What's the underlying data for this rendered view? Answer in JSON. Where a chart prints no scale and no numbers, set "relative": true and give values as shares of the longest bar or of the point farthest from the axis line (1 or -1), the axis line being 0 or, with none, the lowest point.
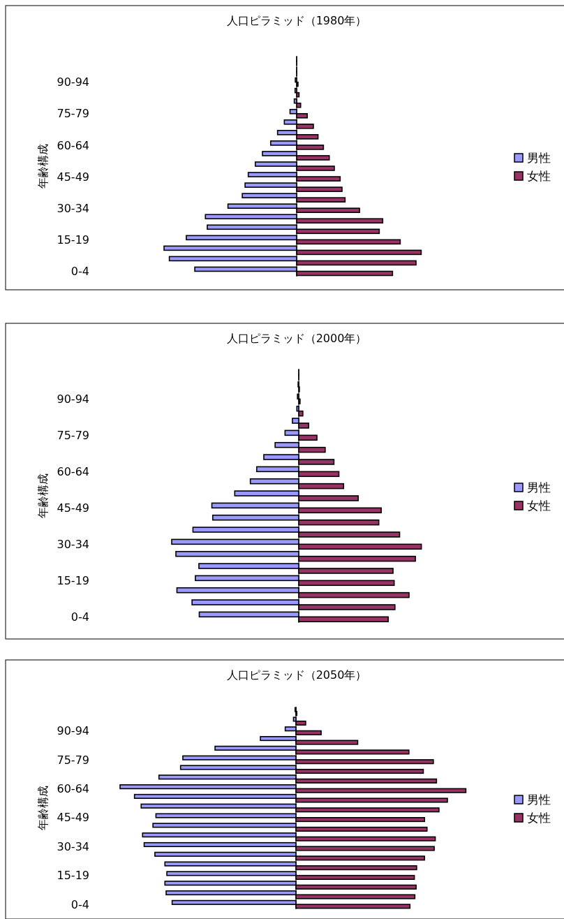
{
  "chart_data": [
    {
      "type": "bar",
      "orientation": "horizontal",
      "relative": true,
      "title": "人口ピラミッド（1980年）",
      "ylabel": "年齢構成",
      "legend": "right",
      "categories": [
        null,
        null,
        "90-94",
        null,
        null,
        "75-79",
        null,
        null,
        "60-64",
        null,
        null,
        "45-49",
        null,
        null,
        "30-34",
        null,
        null,
        "15-19",
        null,
        null,
        "0-4"
      ],
      "series": [
        {
          "name": "男性",
          "color": "#9999ff",
          "values": [
            0,
            0,
            -0.01,
            -0.012,
            -0.018,
            -0.05,
            -0.093,
            -0.144,
            -0.196,
            -0.258,
            -0.312,
            -0.365,
            -0.389,
            -0.41,
            -0.518,
            -0.688,
            -0.674,
            -0.832,
            -1,
            -0.96,
            -0.768
          ]
        },
        {
          "name": "女性",
          "color": "#993366",
          "values": [
            0,
            0,
            0.01,
            0.018,
            0.03,
            0.08,
            0.126,
            0.161,
            0.202,
            0.246,
            0.284,
            0.328,
            0.342,
            0.365,
            0.474,
            0.649,
            0.623,
            0.781,
            0.939,
            0.9,
            0.723
          ]
        }
      ]
    },
    {
      "type": "bar",
      "orientation": "horizontal",
      "relative": true,
      "title": "人口ピラミッド（2000年）",
      "ylabel": "年齢構成",
      "legend": "right",
      "categories": [
        null,
        null,
        "90-94",
        null,
        null,
        "75-79",
        null,
        null,
        "60-64",
        null,
        null,
        "45-49",
        null,
        null,
        "30-34",
        null,
        null,
        "15-19",
        null,
        null,
        "0-4"
      ],
      "series": [
        {
          "name": "男性",
          "color": "#9999ff",
          "values": [
            0,
            -0.005,
            -0.01,
            -0.015,
            -0.05,
            -0.108,
            -0.186,
            -0.275,
            -0.331,
            -0.381,
            -0.504,
            -0.684,
            -0.677,
            -0.833,
            -1,
            -0.967,
            -0.786,
            -0.814,
            -0.959,
            -0.84,
            -0.783
          ]
        },
        {
          "name": "女性",
          "color": "#993366",
          "values": [
            0,
            0.005,
            0.01,
            0.032,
            0.078,
            0.143,
            0.208,
            0.277,
            0.316,
            0.353,
            0.468,
            0.649,
            0.63,
            0.794,
            0.965,
            0.918,
            0.742,
            0.751,
            0.868,
            0.757,
            0.704
          ]
        }
      ]
    },
    {
      "type": "bar",
      "orientation": "horizontal",
      "relative": true,
      "title": "人口ピラミッド（2050年）",
      "ylabel": "年齢構成",
      "legend": "right",
      "categories": [
        null,
        null,
        "90-94",
        null,
        null,
        "75-79",
        null,
        null,
        "60-64",
        null,
        null,
        "45-49",
        null,
        null,
        "30-34",
        null,
        null,
        "15-19",
        null,
        null,
        "0-4"
      ],
      "series": [
        {
          "name": "男性",
          "color": "#9999ff",
          "values": [
            -0.005,
            -0.014,
            -0.061,
            -0.202,
            -0.46,
            -0.643,
            -0.656,
            -0.779,
            -1,
            -0.918,
            -0.88,
            -0.796,
            -0.813,
            -0.872,
            -0.863,
            -0.802,
            -0.745,
            -0.734,
            -0.745,
            -0.738,
            -0.704
          ]
        },
        {
          "name": "女性",
          "color": "#993366",
          "values": [
            0.005,
            0.055,
            0.143,
            0.351,
            0.642,
            0.781,
            0.724,
            0.799,
            0.966,
            0.861,
            0.813,
            0.731,
            0.745,
            0.792,
            0.786,
            0.731,
            0.686,
            0.673,
            0.683,
            0.676,
            0.648
          ]
        }
      ]
    }
  ]
}
